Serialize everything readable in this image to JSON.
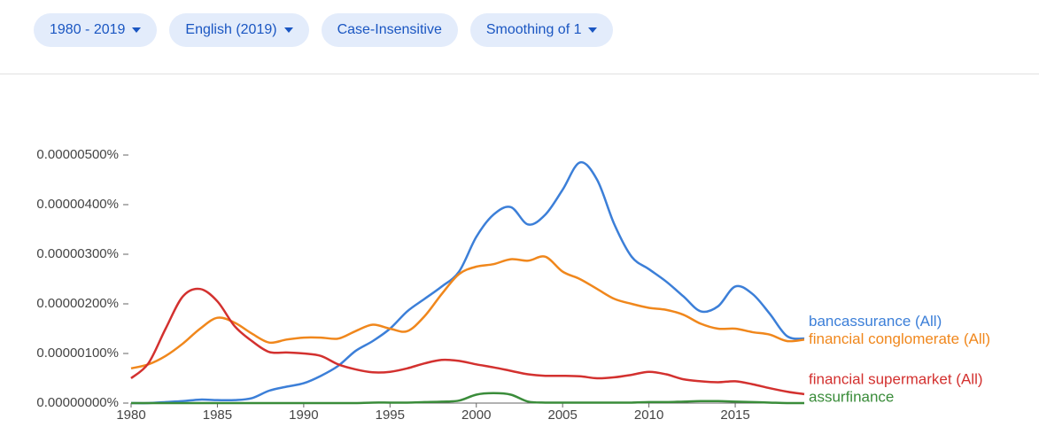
{
  "controls": [
    "1980 - 2019",
    "English (2019)",
    "Case-Insensitive",
    "Smoothing of 1"
  ],
  "chart_data": {
    "type": "line",
    "x": [
      1980,
      1981,
      1982,
      1983,
      1984,
      1985,
      1986,
      1987,
      1988,
      1989,
      1990,
      1991,
      1992,
      1993,
      1994,
      1995,
      1996,
      1997,
      1998,
      1999,
      2000,
      2001,
      2002,
      2003,
      2004,
      2005,
      2006,
      2007,
      2008,
      2009,
      2010,
      2011,
      2012,
      2013,
      2014,
      2015,
      2016,
      2017,
      2018,
      2019
    ],
    "xlim": [
      1980,
      2019
    ],
    "xticks": [
      1980,
      1985,
      1990,
      1995,
      2000,
      2005,
      2010,
      2015
    ],
    "ylim": [
      0,
      5.5e-06
    ],
    "yticks": [
      {
        "value": 0,
        "label": "0.00000000%"
      },
      {
        "value": 1e-06,
        "label": "0.00000100%"
      },
      {
        "value": 2e-06,
        "label": "0.00000200%"
      },
      {
        "value": 3e-06,
        "label": "0.00000300%"
      },
      {
        "value": 4e-06,
        "label": "0.00000400%"
      },
      {
        "value": 5e-06,
        "label": "0.00000500%"
      }
    ],
    "series": [
      {
        "name": "bancassurance (All)",
        "color": "#3c7fd8",
        "values": [
          0,
          0,
          2e-08,
          4e-08,
          7e-08,
          6e-08,
          6e-08,
          1e-07,
          2.5e-07,
          3.3e-07,
          4e-07,
          5.5e-07,
          7.5e-07,
          1.05e-06,
          1.25e-06,
          1.5e-06,
          1.85e-06,
          2.1e-06,
          2.35e-06,
          2.65e-06,
          3.35e-06,
          3.8e-06,
          3.95e-06,
          3.6e-06,
          3.8e-06,
          4.3e-06,
          4.85e-06,
          4.5e-06,
          3.6e-06,
          2.95e-06,
          2.7e-06,
          2.45e-06,
          2.15e-06,
          1.85e-06,
          1.95e-06,
          2.35e-06,
          2.2e-06,
          1.8e-06,
          1.35e-06,
          1.3e-06
        ]
      },
      {
        "name": "financial conglomerate (All)",
        "color": "#f0871c",
        "values": [
          7e-07,
          7.8e-07,
          9.5e-07,
          1.2e-06,
          1.5e-06,
          1.72e-06,
          1.62e-06,
          1.4e-06,
          1.22e-06,
          1.28e-06,
          1.32e-06,
          1.32e-06,
          1.3e-06,
          1.45e-06,
          1.58e-06,
          1.5e-06,
          1.45e-06,
          1.75e-06,
          2.2e-06,
          2.6e-06,
          2.75e-06,
          2.8e-06,
          2.9e-06,
          2.87e-06,
          2.95e-06,
          2.65e-06,
          2.5e-06,
          2.3e-06,
          2.1e-06,
          2e-06,
          1.92e-06,
          1.88e-06,
          1.78e-06,
          1.6e-06,
          1.5e-06,
          1.5e-06,
          1.43e-06,
          1.38e-06,
          1.25e-06,
          1.28e-06
        ]
      },
      {
        "name": "financial supermarket (All)",
        "color": "#d3312f",
        "values": [
          5e-07,
          8e-07,
          1.5e-06,
          2.15e-06,
          2.3e-06,
          2.05e-06,
          1.55e-06,
          1.25e-06,
          1.03e-06,
          1.02e-06,
          1e-06,
          9.5e-07,
          7.8e-07,
          6.8e-07,
          6.2e-07,
          6.3e-07,
          7e-07,
          8e-07,
          8.7e-07,
          8.5e-07,
          7.8e-07,
          7.2e-07,
          6.5e-07,
          5.8e-07,
          5.5e-07,
          5.5e-07,
          5.4e-07,
          5e-07,
          5.2e-07,
          5.7e-07,
          6.3e-07,
          5.8e-07,
          4.8e-07,
          4.4e-07,
          4.2e-07,
          4.4e-07,
          3.8e-07,
          3e-07,
          2.3e-07,
          1.8e-07
        ]
      },
      {
        "name": "assurfinance",
        "color": "#3a8c3a",
        "values": [
          0,
          0,
          0,
          0,
          0,
          0,
          0,
          0,
          0,
          0,
          0,
          0,
          0,
          0,
          1e-08,
          1e-08,
          1e-08,
          2e-08,
          3e-08,
          5e-08,
          1.7e-07,
          2e-07,
          1.7e-07,
          3e-08,
          1e-08,
          1e-08,
          1e-08,
          1e-08,
          1e-08,
          1e-08,
          2e-08,
          2e-08,
          3e-08,
          4e-08,
          4e-08,
          3e-08,
          2e-08,
          1e-08,
          0,
          0
        ]
      }
    ]
  }
}
